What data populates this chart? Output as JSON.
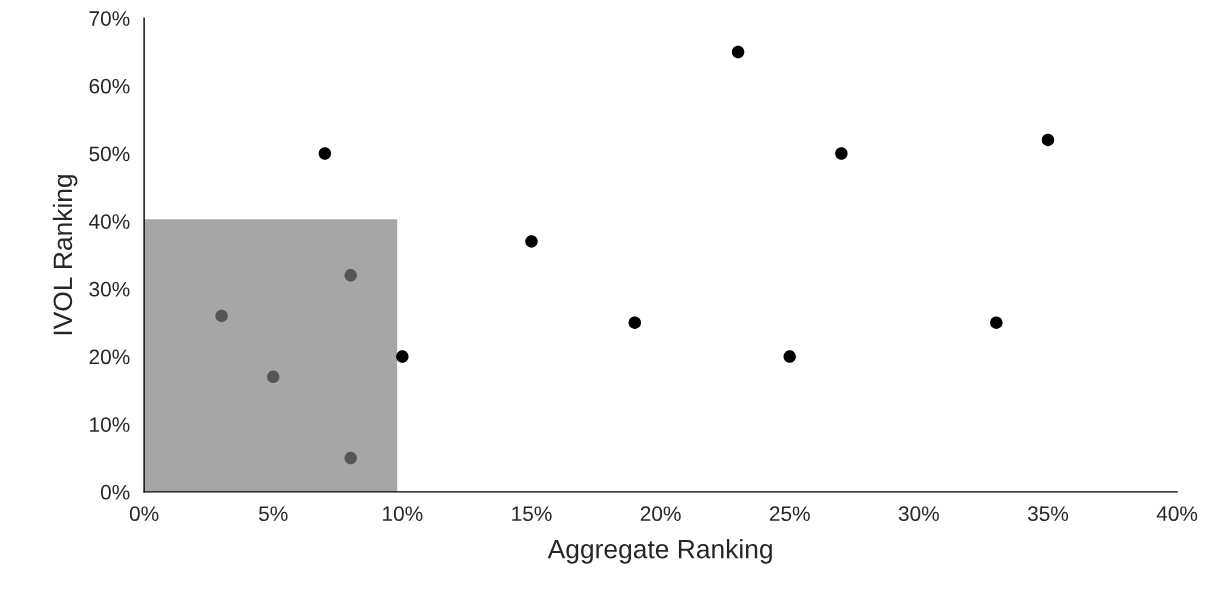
{
  "chart_data": {
    "type": "scatter",
    "xlabel": "Aggregate Ranking",
    "ylabel": "IVOL Ranking",
    "xlim": [
      0,
      40
    ],
    "ylim": [
      0,
      70
    ],
    "xticks": [
      {
        "value": 0,
        "label": "0%"
      },
      {
        "value": 5,
        "label": "5%"
      },
      {
        "value": 10,
        "label": "10%"
      },
      {
        "value": 15,
        "label": "15%"
      },
      {
        "value": 20,
        "label": "20%"
      },
      {
        "value": 25,
        "label": "25%"
      },
      {
        "value": 30,
        "label": "30%"
      },
      {
        "value": 35,
        "label": "35%"
      },
      {
        "value": 40,
        "label": "40%"
      }
    ],
    "yticks": [
      {
        "value": 0,
        "label": "0%"
      },
      {
        "value": 10,
        "label": "10%"
      },
      {
        "value": 20,
        "label": "20%"
      },
      {
        "value": 30,
        "label": "30%"
      },
      {
        "value": 40,
        "label": "40%"
      },
      {
        "value": 50,
        "label": "50%"
      },
      {
        "value": 60,
        "label": "60%"
      },
      {
        "value": 70,
        "label": "70%"
      }
    ],
    "grid": false,
    "series": [
      {
        "type": "area",
        "color": "#a6a6a6",
        "x": [
          0,
          9.8
        ],
        "values": [
          40.3,
          40.3
        ]
      },
      {
        "type": "scatter",
        "marker": "circle",
        "x": [
          3,
          5,
          8,
          8,
          7,
          10,
          15,
          19,
          23,
          25,
          27,
          33,
          35
        ],
        "values": [
          26,
          17,
          32,
          5,
          50,
          20,
          37,
          25,
          65,
          20,
          50,
          25,
          52
        ],
        "colors": [
          "#555555",
          "#555555",
          "#555555",
          "#555555",
          "#000000",
          "#000000",
          "#000000",
          "#000000",
          "#000000",
          "#000000",
          "#000000",
          "#000000",
          "#000000"
        ]
      }
    ]
  }
}
